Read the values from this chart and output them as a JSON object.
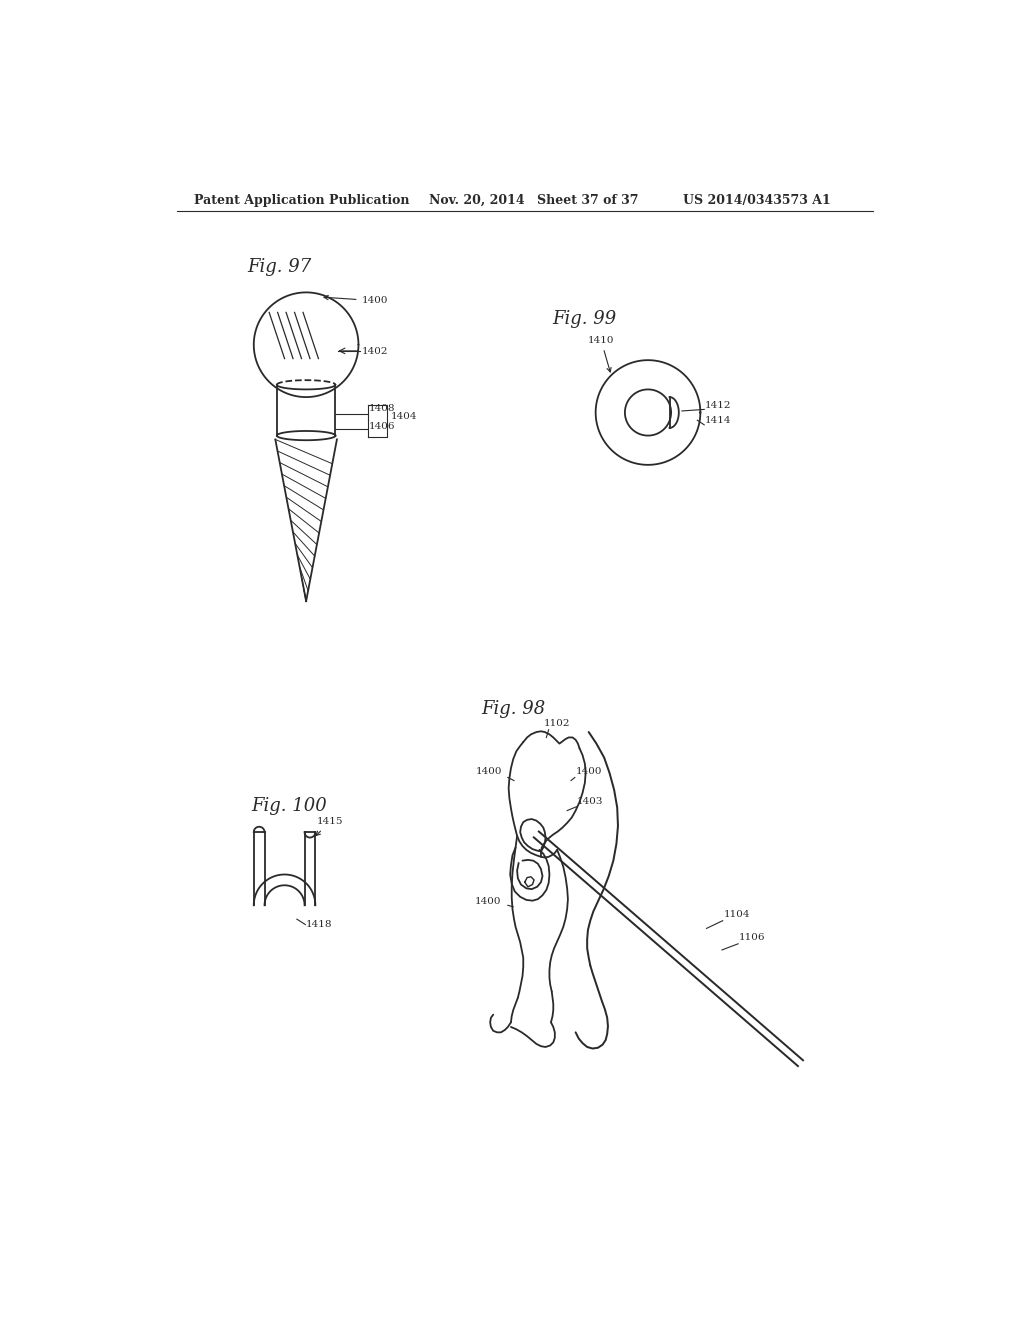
{
  "bg_color": "#ffffff",
  "header_text": "Patent Application Publication",
  "header_date": "Nov. 20, 2014",
  "header_sheet": "Sheet 37 of 37",
  "header_patent": "US 2014/0343573 A1",
  "fig97_label": "Fig. 97",
  "fig98_label": "Fig. 98",
  "fig99_label": "Fig. 99",
  "fig100_label": "Fig. 100",
  "line_color": "#2a2a2a",
  "line_width": 1.3,
  "annotation_fontsize": 7.5,
  "fig_label_fontsize": 13
}
